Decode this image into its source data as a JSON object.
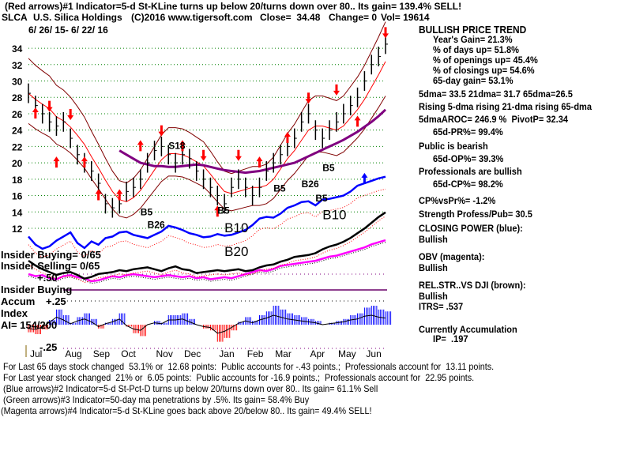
{
  "header": {
    "line1": "(Red arrows)#1 Indicator=5-d St-KLine turns up below 20/turns down over 80.. Its gain= 139.4% SELL!",
    "ticker": "SLCA",
    "company": "U.S. Silica Holdings",
    "copyright": "(C)2016 www.tigersoft.com",
    "close": "Close=  34.48",
    "change": "Change= 0",
    "vol": "Vol= 19614",
    "date_range": "6/ 26/ 15- 6/ 22/ 16"
  },
  "right_panel": {
    "trend": "BULLISH PRICE TREND",
    "year_gain": "Year's Gain= 21.3%",
    "days_up": "% of days up= 51.8%",
    "openings_up": "% of openings up= 45.4%",
    "closings_up": "% of closings up= 54.6%",
    "gain65": "65-day gain= 53.1%",
    "dma": "5dma= 33.5 21dma= 31.7 65dma=26.5",
    "rising": "Rising 5-dma rising 21-dma rising 65-dma",
    "aroc": "5dmaAROC= 246.9 %  PivotP= 32.34",
    "pr": "65d-PR%= 99.4%",
    "public": "Public is bearish",
    "op": "65d-OP%= 39.3%",
    "pros": "Professionals are bullish",
    "cp": "65d-CP%= 98.2%",
    "cpvspr": "CP%vsPr%= -1.2%",
    "strength": "Strength Profess/Pub= 30.5",
    "cp_title": "CLOSING POWER (blue):",
    "cp_state": "Bullish",
    "obv_title": "OBV (magenta):",
    "obv_state": "Bullish",
    "rs_title": "REL.STR..VS DJI (brown):",
    "rs_state": "Bullish",
    "itrs": "ITRS= .537",
    "accum": "Currently Accumulation",
    "ip": "IP=  .197"
  },
  "left_labels": {
    "insider_buying_top": "Insider Buying= 0/65",
    "insider_selling": "Insider Selling= 0/65",
    "plus50": "+.50",
    "insider_buying": "Insider Buying",
    "accum": "Accum",
    "plus25": "+.25",
    "index": "Index",
    "ai": "AI= 154/200",
    "minus25": "-.25"
  },
  "footer": [
    "For Last 65 days stock changed  53.1% or  12.68 points:  Public accounts for -.43 points.;  Professionals account for  13.11 points.",
    "For Last year stock changed  21% or  6.05 points:  Public accounts for -16.9 points.;  Professionals account for  22.95 points.",
    "(Blue arrows)#2 Indicator=5-d St-Pct-D turns up below 20/turns down over 80.. Its gain= 61.1% Sell",
    "(Green arrows)#3 Indicator=50-day ma penetrations by .5%. Its gain= 58.4% Buy",
    "(Magenta arrows)#4 Indicator=5-d St-KLine goes back above 20/below 80.. Its gain= 49.4% SELL!"
  ],
  "chart_data": {
    "type": "line",
    "title": "SLCA U.S. Silica Holdings",
    "x_unit": "week",
    "months": [
      "Jul",
      "Aug",
      "Sep",
      "Oct",
      "Nov",
      "Dec",
      "Jan",
      "Feb",
      "Mar",
      "Apr",
      "May",
      "Jun"
    ],
    "month_start_week": [
      0,
      5,
      9,
      13,
      18,
      22,
      27,
      31,
      35,
      40,
      44,
      48
    ],
    "yticks": [
      12,
      14,
      16,
      18,
      20,
      22,
      24,
      26,
      28,
      30,
      32,
      34
    ],
    "ylim": [
      11,
      36
    ],
    "price_close": [
      28.5,
      27,
      26,
      25,
      24.5,
      25,
      23,
      21,
      20,
      19,
      17.5,
      15,
      14.5,
      15,
      16.5,
      17,
      18,
      20,
      21.5,
      22,
      21,
      20,
      21,
      20.5,
      19,
      18,
      17,
      16,
      15,
      17,
      18,
      17,
      16,
      17,
      19,
      20,
      21,
      22,
      23,
      25,
      26,
      24,
      23,
      24,
      25,
      26,
      27,
      28,
      30,
      32,
      33,
      34.5
    ],
    "ma65": [
      null,
      null,
      null,
      null,
      null,
      null,
      null,
      null,
      null,
      null,
      null,
      null,
      null,
      21.5,
      21,
      20.5,
      20,
      19.8,
      19.6,
      19.6,
      19.5,
      19.5,
      19.6,
      19.7,
      19.8,
      19.7,
      19.5,
      19.3,
      19.1,
      19,
      18.9,
      18.8,
      18.9,
      19,
      19.2,
      19.4,
      19.6,
      19.8,
      20,
      20.4,
      20.8,
      21.2,
      21.6,
      22,
      22.4,
      22.8,
      23.3,
      23.8,
      24.4,
      25,
      25.7,
      26.5
    ],
    "closing_power": [
      11,
      10,
      9.5,
      9.8,
      10.5,
      11,
      11.5,
      10.2,
      9.6,
      10.4,
      10,
      10.8,
      11,
      11.5,
      11.6,
      11.2,
      11,
      10.8,
      11.2,
      11.6,
      12.3,
      12.1,
      11.8,
      11.4,
      11.2,
      10.9,
      11,
      11.3,
      11.1,
      11.2,
      11.5,
      11.8,
      12.4,
      13.2,
      13.4,
      13.3,
      13.8,
      14.5,
      14.8,
      15.2,
      15.3,
      14.8,
      15.5,
      15.6,
      15.8,
      16,
      16.5,
      17.2,
      17.5,
      17.8,
      18.1,
      18.3
    ],
    "obv": [
      5,
      4.8,
      4.9,
      4.6,
      4.5,
      4.8,
      4.9,
      4.7,
      4.6,
      4.3,
      4.4,
      4.6,
      4.8,
      4.7,
      4.9,
      5,
      4.9,
      4.8,
      4.7,
      4.8,
      4.9,
      4.8,
      4.7,
      4.8,
      4.6,
      4.7,
      4.5,
      4.6,
      4.7,
      4.6,
      4.8,
      5,
      5.2,
      5.4,
      5.3,
      5.5,
      5.8,
      5.9,
      6,
      6.1,
      6.2,
      6.3,
      6.5,
      6.7,
      6.8,
      7,
      7.2,
      7.4,
      7.6,
      7.9,
      8.1,
      8.3
    ],
    "rel_strength": [
      3.5,
      3,
      2.6,
      2.3,
      2,
      2.2,
      2.3,
      2,
      1.6,
      1.8,
      2.1,
      2.2,
      2.3,
      2.5,
      2.4,
      2.6,
      2.7,
      2.8,
      2.6,
      2.4,
      2.7,
      2.9,
      2.6,
      2.5,
      2.2,
      2.3,
      2.4,
      2.5,
      2.4,
      2.5,
      2.6,
      2.4,
      2.5,
      2.8,
      3,
      3.1,
      3.4,
      3.6,
      3.9,
      4,
      4.1,
      4.3,
      4.7,
      5,
      5.2,
      5.5,
      5.9,
      6.4,
      6.9,
      7.5,
      8.1,
      8.6
    ],
    "accum_index": [
      -0.08,
      -0.1,
      -0.05,
      0.05,
      0.16,
      0.1,
      0.02,
      0.08,
      0.12,
      0.06,
      -0.04,
      0.02,
      0.06,
      0.12,
      -0.02,
      -0.09,
      -0.12,
      0.0,
      0.04,
      0.02,
      0.1,
      0.1,
      0.12,
      0.06,
      0.0,
      -0.04,
      -0.06,
      -0.18,
      -0.14,
      -0.06,
      0.03,
      0.08,
      0.04,
      0.1,
      0.14,
      0.2,
      0.16,
      0.12,
      0.1,
      0.08,
      0.06,
      0.04,
      0.0,
      0.02,
      0.04,
      0.06,
      0.1,
      0.12,
      0.18,
      0.2,
      0.16,
      0.14
    ],
    "signals": [
      {
        "week": 1,
        "price": 26,
        "dir": "up",
        "color": "red"
      },
      {
        "week": 3,
        "price": 27,
        "dir": "down",
        "color": "red"
      },
      {
        "week": 4,
        "price": 20,
        "dir": "up",
        "color": "red"
      },
      {
        "week": 6,
        "price": 26,
        "dir": "down",
        "color": "red"
      },
      {
        "week": 8,
        "price": 20,
        "dir": "up",
        "color": "red"
      },
      {
        "week": 10,
        "price": 16,
        "dir": "up",
        "color": "red"
      },
      {
        "week": 13,
        "price": 16,
        "dir": "up",
        "color": "red"
      },
      {
        "week": 16,
        "price": 22,
        "dir": "up",
        "color": "red"
      },
      {
        "week": 19,
        "price": 24,
        "dir": "down",
        "color": "red"
      },
      {
        "week": 22,
        "price": 22,
        "dir": "up",
        "color": "red"
      },
      {
        "week": 25,
        "price": 21,
        "dir": "down",
        "color": "red"
      },
      {
        "week": 27,
        "price": 14,
        "dir": "up",
        "color": "red"
      },
      {
        "week": 30,
        "price": 21,
        "dir": "down",
        "color": "red"
      },
      {
        "week": 33,
        "price": 20,
        "dir": "up",
        "color": "red"
      },
      {
        "week": 37,
        "price": 23,
        "dir": "up",
        "color": "red"
      },
      {
        "week": 40,
        "price": 28,
        "dir": "down",
        "color": "red"
      },
      {
        "week": 44,
        "price": 29,
        "dir": "down",
        "color": "red"
      },
      {
        "week": 47,
        "price": 25,
        "dir": "up",
        "color": "red"
      },
      {
        "week": 51,
        "price": 36,
        "dir": "down",
        "color": "red"
      },
      {
        "week": 48,
        "price": 18,
        "dir": "up",
        "color": "blue"
      }
    ],
    "annotations": [
      {
        "text": "S18",
        "week": 20,
        "price": 21.7,
        "size": "small"
      },
      {
        "text": "B5",
        "week": 16,
        "price": 13.6,
        "size": "small"
      },
      {
        "text": "B26",
        "week": 17,
        "price": 13.2,
        "size": "small"
      },
      {
        "text": "B5",
        "week": 27,
        "price": 13.8,
        "size": "small"
      },
      {
        "text": "B10",
        "week": 28,
        "price": 11.5,
        "size": "large"
      },
      {
        "text": "B5",
        "week": 35,
        "price": 16.5,
        "size": "small"
      },
      {
        "text": "B26",
        "week": 39,
        "price": 17,
        "size": "small"
      },
      {
        "text": "B5",
        "week": 41,
        "price": 18,
        "size": "small"
      },
      {
        "text": "B5",
        "week": 42,
        "price": 19,
        "size": "small"
      },
      {
        "text": "B10",
        "week": 42,
        "price": 16.6,
        "size": "large"
      },
      {
        "text": "B20",
        "week": 28,
        "price": 8.6,
        "size": "large"
      }
    ]
  }
}
